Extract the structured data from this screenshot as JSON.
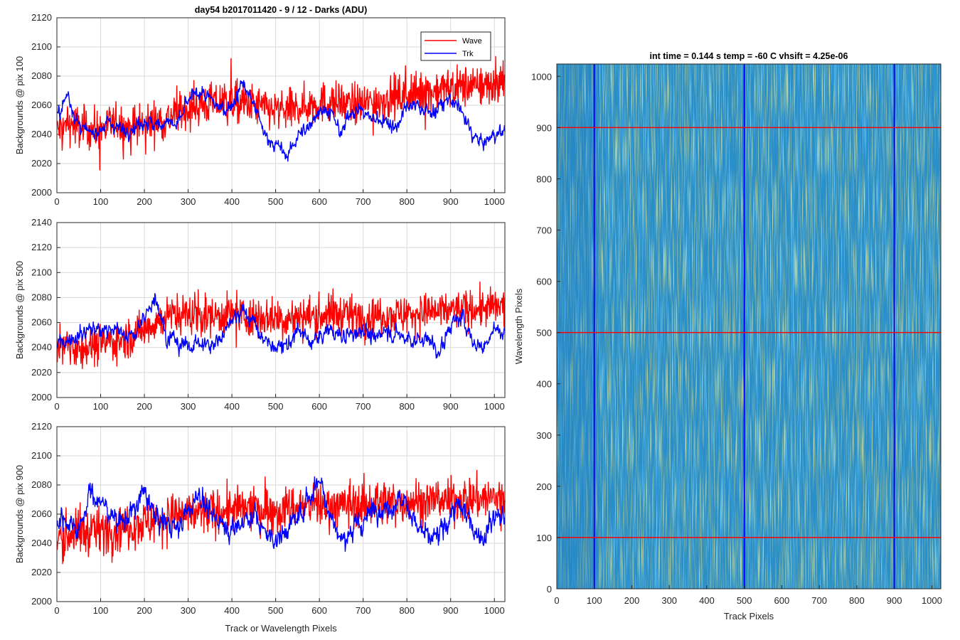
{
  "figure": {
    "main_title": "day54 b2017011420 - 9 / 12 - Darks (ADU)",
    "image_title": "int time = 0.144 s   temp = -60 C   vhsift = 4.25e-06"
  },
  "legend": {
    "wave": "Wave",
    "trk": "Trk"
  },
  "colors": {
    "wave": "#ff0000",
    "trk": "#0000ff",
    "grid": "#d9d9d9",
    "image_base": "#2a8fc8",
    "image_hot": "#bfd35a"
  },
  "chart_data": [
    {
      "type": "line",
      "ylabel": "Backgrounds @ pix 100",
      "xlabel": "",
      "xlim": [
        0,
        1024
      ],
      "ylim": [
        2000,
        2120
      ],
      "xticks": [
        "0",
        "100",
        "200",
        "300",
        "400",
        "500",
        "600",
        "700",
        "800",
        "900",
        "1000"
      ],
      "yticks": [
        "2000",
        "2020",
        "2040",
        "2060",
        "2080",
        "2100",
        "2120"
      ],
      "grid": true,
      "legend_position": "top-right",
      "series": [
        {
          "name": "Wave",
          "color": "#ff0000",
          "x": [
            0,
            25,
            50,
            75,
            100,
            125,
            150,
            175,
            200,
            225,
            250,
            275,
            300,
            325,
            350,
            375,
            400,
            425,
            450,
            475,
            500,
            525,
            550,
            575,
            600,
            625,
            650,
            675,
            700,
            725,
            750,
            775,
            800,
            825,
            850,
            875,
            900,
            925,
            950,
            975,
            1000,
            1024
          ],
          "y": [
            2042,
            2048,
            2045,
            2044,
            2043,
            2047,
            2045,
            2046,
            2047,
            2049,
            2050,
            2054,
            2058,
            2060,
            2061,
            2062,
            2062,
            2061,
            2060,
            2058,
            2056,
            2056,
            2058,
            2060,
            2062,
            2062,
            2061,
            2060,
            2061,
            2063,
            2064,
            2065,
            2067,
            2068,
            2069,
            2071,
            2072,
            2073,
            2073,
            2074,
            2075,
            2076
          ]
        },
        {
          "name": "Trk",
          "color": "#0000ff",
          "x": [
            0,
            25,
            50,
            75,
            100,
            125,
            150,
            175,
            200,
            225,
            250,
            275,
            300,
            325,
            350,
            375,
            400,
            425,
            450,
            475,
            500,
            525,
            550,
            575,
            600,
            625,
            650,
            675,
            700,
            725,
            750,
            775,
            800,
            825,
            850,
            875,
            900,
            925,
            950,
            975,
            1000,
            1024
          ],
          "y": [
            2050,
            2068,
            2045,
            2040,
            2045,
            2048,
            2043,
            2045,
            2050,
            2045,
            2050,
            2045,
            2063,
            2070,
            2063,
            2058,
            2060,
            2075,
            2060,
            2040,
            2033,
            2025,
            2038,
            2045,
            2058,
            2055,
            2040,
            2058,
            2055,
            2050,
            2050,
            2045,
            2058,
            2060,
            2055,
            2058,
            2065,
            2055,
            2040,
            2033,
            2040,
            2042
          ]
        }
      ]
    },
    {
      "type": "line",
      "ylabel": "Backgrounds @ pix 500",
      "xlabel": "",
      "xlim": [
        0,
        1024
      ],
      "ylim": [
        2000,
        2140
      ],
      "xticks": [
        "0",
        "100",
        "200",
        "300",
        "400",
        "500",
        "600",
        "700",
        "800",
        "900",
        "1000"
      ],
      "yticks": [
        "2000",
        "2020",
        "2040",
        "2060",
        "2080",
        "2100",
        "2120",
        "2140"
      ],
      "grid": true,
      "series": [
        {
          "name": "Wave",
          "color": "#ff0000",
          "x": [
            0,
            25,
            50,
            75,
            100,
            125,
            150,
            175,
            200,
            225,
            250,
            275,
            300,
            325,
            350,
            375,
            400,
            425,
            450,
            475,
            500,
            525,
            550,
            575,
            600,
            625,
            650,
            675,
            700,
            725,
            750,
            775,
            800,
            825,
            850,
            875,
            900,
            925,
            950,
            975,
            1000,
            1024
          ],
          "y": [
            2042,
            2042,
            2040,
            2041,
            2043,
            2045,
            2046,
            2050,
            2055,
            2060,
            2065,
            2066,
            2067,
            2066,
            2065,
            2066,
            2067,
            2066,
            2064,
            2065,
            2064,
            2063,
            2064,
            2065,
            2066,
            2066,
            2067,
            2066,
            2065,
            2066,
            2067,
            2066,
            2067,
            2068,
            2068,
            2069,
            2070,
            2070,
            2071,
            2071,
            2072,
            2072
          ]
        },
        {
          "name": "Trk",
          "color": "#0000ff",
          "x": [
            0,
            25,
            50,
            75,
            100,
            125,
            150,
            175,
            200,
            225,
            250,
            275,
            300,
            325,
            350,
            375,
            400,
            425,
            450,
            475,
            500,
            525,
            550,
            575,
            600,
            625,
            650,
            675,
            700,
            725,
            750,
            775,
            800,
            825,
            850,
            875,
            900,
            925,
            950,
            975,
            1000,
            1024
          ],
          "y": [
            2042,
            2048,
            2050,
            2056,
            2052,
            2058,
            2050,
            2048,
            2064,
            2082,
            2050,
            2045,
            2040,
            2045,
            2040,
            2048,
            2065,
            2070,
            2060,
            2045,
            2040,
            2040,
            2055,
            2045,
            2048,
            2055,
            2048,
            2050,
            2056,
            2045,
            2055,
            2050,
            2048,
            2045,
            2048,
            2035,
            2058,
            2065,
            2045,
            2040,
            2055,
            2050
          ]
        }
      ]
    },
    {
      "type": "line",
      "ylabel": "Backgrounds @ pix 900",
      "xlabel": "Track or Wavelength Pixels",
      "xlim": [
        0,
        1024
      ],
      "ylim": [
        2000,
        2120
      ],
      "xticks": [
        "0",
        "100",
        "200",
        "300",
        "400",
        "500",
        "600",
        "700",
        "800",
        "900",
        "1000"
      ],
      "yticks": [
        "2000",
        "2020",
        "2040",
        "2060",
        "2080",
        "2100",
        "2120"
      ],
      "grid": true,
      "series": [
        {
          "name": "Wave",
          "color": "#ff0000",
          "x": [
            0,
            25,
            50,
            75,
            100,
            125,
            150,
            175,
            200,
            225,
            250,
            275,
            300,
            325,
            350,
            375,
            400,
            425,
            450,
            475,
            500,
            525,
            550,
            575,
            600,
            625,
            650,
            675,
            700,
            725,
            750,
            775,
            800,
            825,
            850,
            875,
            900,
            925,
            950,
            975,
            1000,
            1024
          ],
          "y": [
            2045,
            2046,
            2047,
            2048,
            2049,
            2050,
            2052,
            2053,
            2054,
            2056,
            2058,
            2059,
            2060,
            2061,
            2061,
            2062,
            2063,
            2063,
            2064,
            2064,
            2063,
            2064,
            2065,
            2065,
            2066,
            2066,
            2066,
            2067,
            2067,
            2067,
            2068,
            2068,
            2069,
            2069,
            2069,
            2070,
            2070,
            2070,
            2071,
            2071,
            2071,
            2071
          ]
        },
        {
          "name": "Trk",
          "color": "#0000ff",
          "x": [
            0,
            25,
            50,
            75,
            100,
            125,
            150,
            175,
            200,
            225,
            250,
            275,
            300,
            325,
            350,
            375,
            400,
            425,
            450,
            475,
            500,
            525,
            550,
            575,
            600,
            625,
            650,
            675,
            700,
            725,
            750,
            775,
            800,
            825,
            850,
            875,
            900,
            925,
            950,
            975,
            1000,
            1024
          ],
          "y": [
            2058,
            2055,
            2050,
            2075,
            2068,
            2060,
            2055,
            2062,
            2075,
            2058,
            2055,
            2050,
            2062,
            2075,
            2060,
            2055,
            2050,
            2055,
            2060,
            2048,
            2042,
            2050,
            2058,
            2070,
            2085,
            2060,
            2042,
            2048,
            2055,
            2065,
            2062,
            2070,
            2068,
            2050,
            2042,
            2045,
            2060,
            2065,
            2052,
            2045,
            2060,
            2058
          ]
        }
      ]
    },
    {
      "type": "heatmap",
      "title": "int time = 0.144 s   temp = -60 C   vhsift = 4.25e-06",
      "xlabel": "Track Pixels",
      "ylabel": "Wavelength Pixels",
      "xlim": [
        0,
        1024
      ],
      "ylim": [
        0,
        1024
      ],
      "xticks": [
        "0",
        "100",
        "200",
        "300",
        "400",
        "500",
        "600",
        "700",
        "800",
        "900",
        "1000"
      ],
      "yticks": [
        "0",
        "100",
        "200",
        "300",
        "400",
        "500",
        "600",
        "700",
        "800",
        "900",
        "1000"
      ],
      "colormap": "parula",
      "vertical_marker_lines": {
        "color": "#0000ff",
        "x": [
          100,
          500,
          900
        ]
      },
      "horizontal_marker_lines": {
        "color": "#ff0000",
        "y": [
          100,
          500,
          900
        ]
      }
    }
  ]
}
